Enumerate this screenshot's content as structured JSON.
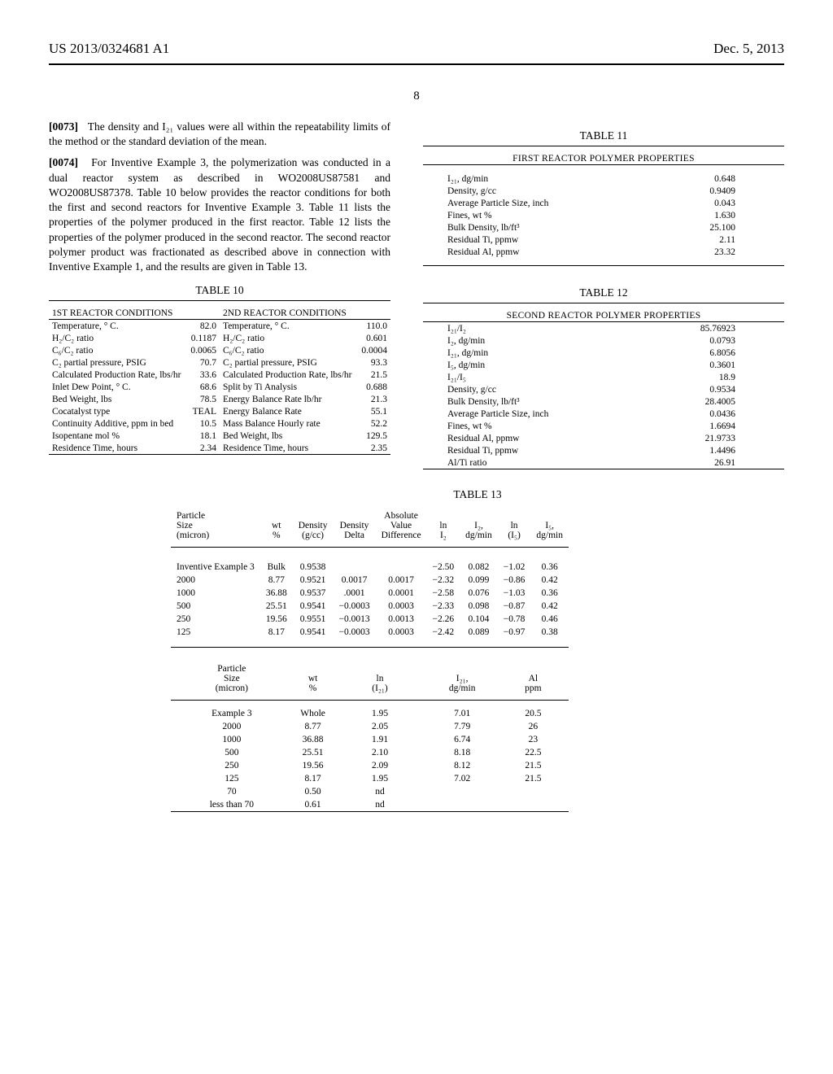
{
  "header": {
    "docnum": "US 2013/0324681 A1",
    "date": "Dec. 5, 2013"
  },
  "pagenum": "8",
  "paragraphs": {
    "p73_num": "[0073]",
    "p73": "The density and I₂₁ values were all within the repeatability limits of the method or the standard deviation of the mean.",
    "p74_num": "[0074]",
    "p74": "For Inventive Example 3, the polymerization was conducted in a dual reactor system as described in WO2008US87581 and WO2008US87378. Table 10 below provides the reactor conditions for both the first and second reactors for Inventive Example 3. Table 11 lists the properties of the polymer produced in the first reactor. Table 12 lists the properties of the polymer produced in the second reactor. The second reactor polymer product was fractionated as described above in connection with Inventive Example 1, and the results are given in Table 13."
  },
  "table10": {
    "caption": "TABLE 10",
    "h1": "1ST REACTOR CONDITIONS",
    "h2": "2ND REACTOR CONDITIONS",
    "rows": [
      [
        "Temperature, ° C.",
        "82.0",
        "Temperature, ° C.",
        "110.0"
      ],
      [
        "H₂/C₂ ratio",
        "0.1187",
        "H₂/C₂ ratio",
        "0.601"
      ],
      [
        "C₆/C₂ ratio",
        "0.0065",
        "C₆/C₂ ratio",
        "0.0004"
      ],
      [
        "C₂ partial pressure, PSIG",
        "70.7",
        "C₂ partial pressure, PSIG",
        "93.3"
      ],
      [
        "Calculated Production Rate, lbs/hr",
        "33.6",
        "Calculated Production Rate, lbs/hr",
        "21.5"
      ],
      [
        "Inlet Dew Point, ° C.",
        "68.6",
        "Split by Ti Analysis",
        "0.688"
      ],
      [
        "Bed Weight, lbs",
        "78.5",
        "Energy Balance Rate lb/hr",
        "21.3"
      ],
      [
        "Cocatalyst type",
        "TEAL",
        "Energy Balance Rate",
        "55.1"
      ],
      [
        "Continuity Additive, ppm in bed",
        "10.5",
        "Mass Balance Hourly rate",
        "52.2"
      ],
      [
        "Isopentane mol %",
        "18.1",
        "Bed Weight, lbs",
        "129.5"
      ],
      [
        "Residence Time, hours",
        "2.34",
        "Residence Time, hours",
        "2.35"
      ]
    ]
  },
  "table11": {
    "caption": "TABLE 11",
    "title": "FIRST REACTOR POLYMER PROPERTIES",
    "rows": [
      [
        "I₂₁, dg/min",
        "0.648"
      ],
      [
        "Density, g/cc",
        "0.9409"
      ],
      [
        "Average Particle Size, inch",
        "0.043"
      ],
      [
        "Fines, wt %",
        "1.630"
      ],
      [
        "Bulk Density, lb/ft³",
        "25.100"
      ],
      [
        "Residual Ti, ppmw",
        "2.11"
      ],
      [
        "Residual Al, ppmw",
        "23.32"
      ]
    ]
  },
  "table12": {
    "caption": "TABLE 12",
    "title": "SECOND REACTOR POLYMER PROPERTIES",
    "rows": [
      [
        "I₂₁/I₂",
        "85.76923"
      ],
      [
        "I₂, dg/min",
        "0.0793"
      ],
      [
        "I₂₁, dg/min",
        "6.8056"
      ],
      [
        "I₅, dg/min",
        "0.3601"
      ],
      [
        "I₂₁/I₅",
        "18.9"
      ],
      [
        "Density, g/cc",
        "0.9534"
      ],
      [
        "Bulk Density, lb/ft³",
        "28.4005"
      ],
      [
        "Average Particle Size, inch",
        "0.0436"
      ],
      [
        "Fines, wt %",
        "1.6694"
      ],
      [
        "Residual Al, ppmw",
        "21.9733"
      ],
      [
        "Residual Ti, ppmw",
        "1.4496"
      ],
      [
        "Al/Ti ratio",
        "26.91"
      ]
    ]
  },
  "table13": {
    "caption": "TABLE 13",
    "cols_top": [
      "Particle Size (micron)",
      "wt %",
      "Density (g/cc)",
      "Density Delta",
      "Absolute Value Difference",
      "ln I₂",
      "I₂, dg/min",
      "ln (I₅)",
      "I₅, dg/min"
    ],
    "rows_top": [
      [
        "Inventive Example 3",
        "Bulk",
        "0.9538",
        "",
        "",
        "−2.50",
        "0.082",
        "−1.02",
        "0.36"
      ],
      [
        "2000",
        "8.77",
        "0.9521",
        "0.0017",
        "0.0017",
        "−2.32",
        "0.099",
        "−0.86",
        "0.42"
      ],
      [
        "1000",
        "36.88",
        "0.9537",
        ".0001",
        "0.0001",
        "−2.58",
        "0.076",
        "−1.03",
        "0.36"
      ],
      [
        "500",
        "25.51",
        "0.9541",
        "−0.0003",
        "0.0003",
        "−2.33",
        "0.098",
        "−0.87",
        "0.42"
      ],
      [
        "250",
        "19.56",
        "0.9551",
        "−0.0013",
        "0.0013",
        "−2.26",
        "0.104",
        "−0.78",
        "0.46"
      ],
      [
        "125",
        "8.17",
        "0.9541",
        "−0.0003",
        "0.0003",
        "−2.42",
        "0.089",
        "−0.97",
        "0.38"
      ]
    ],
    "cols_bot": [
      "Particle Size (micron)",
      "wt %",
      "ln (I₂₁)",
      "I₂₁, dg/min",
      "Al ppm"
    ],
    "rows_bot": [
      [
        "Example 3",
        "Whole",
        "1.95",
        "7.01",
        "20.5"
      ],
      [
        "2000",
        "8.77",
        "2.05",
        "7.79",
        "26"
      ],
      [
        "1000",
        "36.88",
        "1.91",
        "6.74",
        "23"
      ],
      [
        "500",
        "25.51",
        "2.10",
        "8.18",
        "22.5"
      ],
      [
        "250",
        "19.56",
        "2.09",
        "8.12",
        "21.5"
      ],
      [
        "125",
        "8.17",
        "1.95",
        "7.02",
        "21.5"
      ],
      [
        "70",
        "0.50",
        "nd",
        "",
        ""
      ],
      [
        "less than 70",
        "0.61",
        "nd",
        "",
        ""
      ]
    ]
  }
}
